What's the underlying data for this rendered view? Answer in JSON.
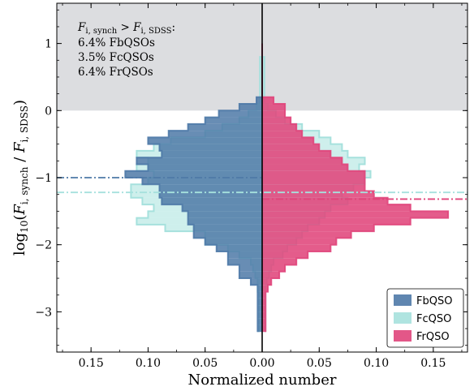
{
  "colors": {
    "FbQSO": "#4e79a7",
    "FcQSO": "#a6e1dd",
    "FrQSO": "#e0457b",
    "shade": "#dcdde0"
  },
  "chart_data": {
    "type": "bar",
    "orientation": "horizontal-mirrored",
    "xlabel": "Normalized number",
    "ylabel_parts": {
      "prefix": "log",
      "base": "10",
      "open": "(",
      "num": "F",
      "num_sub": "i, synch",
      "slash": " / ",
      "den": "F",
      "den_sub": "i, SDSS",
      "close": ")"
    },
    "xlim": [
      -0.18,
      0.18
    ],
    "ylim": [
      -3.6,
      1.6
    ],
    "x_ticks": [
      -0.15,
      -0.1,
      -0.05,
      0.0,
      0.05,
      0.1,
      0.15
    ],
    "x_tick_labels": [
      "0.15",
      "0.10",
      "0.05",
      "0.00",
      "0.05",
      "0.10",
      "0.15"
    ],
    "y_ticks": [
      1,
      0,
      -1,
      -2,
      -3
    ],
    "y_tick_labels": [
      "1",
      "0",
      "−1",
      "−2",
      "−3"
    ],
    "shaded_region": {
      "y_from": 0,
      "y_to": 1.6
    },
    "bin_edges": [
      1.0,
      0.9,
      0.8,
      0.7,
      0.6,
      0.5,
      0.4,
      0.3,
      0.2,
      0.1,
      0.0,
      -0.1,
      -0.2,
      -0.3,
      -0.4,
      -0.5,
      -0.6,
      -0.7,
      -0.8,
      -0.9,
      -1.0,
      -1.1,
      -1.2,
      -1.3,
      -1.4,
      -1.5,
      -1.6,
      -1.7,
      -1.8,
      -1.9,
      -2.0,
      -2.1,
      -2.2,
      -2.3,
      -2.4,
      -2.5,
      -2.6,
      -2.7,
      -2.8,
      -2.9,
      -3.0,
      -3.1,
      -3.2,
      -3.3
    ],
    "series": [
      {
        "name": "FbQSO",
        "side": "left",
        "values": [
          0,
          0,
          0,
          0,
          0,
          0,
          0,
          0,
          0.005,
          0.01,
          0.01,
          0.0,
          0.0,
          0.0,
          0.0,
          0.0,
          0.0,
          0.0,
          0.0,
          0.0,
          0.0,
          0.0,
          0.0,
          0.0,
          0.0,
          0.0,
          0.0,
          0.0,
          0.0,
          0.0,
          0.0,
          0.0,
          0.0,
          0.0,
          0.0,
          0.0,
          0.0,
          0.0,
          0.004,
          0.004,
          0.004,
          0.004,
          0.004
        ],
        "values_fb": [
          0,
          0,
          0,
          0,
          0,
          0,
          0,
          0,
          0.005,
          0.02,
          0.038,
          0.05,
          0.065,
          0.082,
          0.1,
          0.09,
          0.088,
          0.11,
          0.1,
          0.12,
          0.105,
          0.09,
          0.09,
          0.088,
          0.07,
          0.065,
          0.065,
          0.06,
          0.06,
          0.05,
          0.04,
          0.03,
          0.03,
          0.02,
          0.02,
          0.01,
          0.004,
          0.004,
          0.004,
          0.004,
          0.004,
          0.004,
          0.004
        ]
      },
      {
        "name": "FcQSO",
        "side": "left",
        "values": [
          0,
          0,
          0.002,
          0.002,
          0.002,
          0.002,
          0.002,
          0.002,
          0.002,
          0.005,
          0.012,
          0.02,
          0.035,
          0.05,
          0.08,
          0.095,
          0.11,
          0.1,
          0.11,
          0.095,
          0.1,
          0.115,
          0.115,
          0.105,
          0.095,
          0.1,
          0.11,
          0.085,
          0.05,
          0.05,
          0.03,
          0.02,
          0.01,
          0.008,
          0.006,
          0.004,
          0.004,
          0.003,
          0.003,
          0.003,
          0.003,
          0.003,
          0.003
        ]
      },
      {
        "name": "FrQSO",
        "side": "right",
        "values": [
          0,
          0,
          0,
          0,
          0,
          0,
          0,
          0,
          0.01,
          0.02,
          0.02,
          0.025,
          0.03,
          0.035,
          0.045,
          0.05,
          0.06,
          0.07,
          0.075,
          0.09,
          0.09,
          0.09,
          0.098,
          0.11,
          0.13,
          0.163,
          0.13,
          0.098,
          0.078,
          0.065,
          0.06,
          0.04,
          0.03,
          0.02,
          0.015,
          0.008,
          0.005,
          0.003,
          0.003,
          0.003,
          0.003,
          0.003,
          0.003
        ]
      },
      {
        "name": "FcQSO",
        "side": "right",
        "values": [
          0,
          0,
          0.002,
          0.002,
          0.002,
          0.002,
          0.002,
          0.002,
          0.002,
          0.005,
          0.012,
          0.02,
          0.035,
          0.05,
          0.06,
          0.07,
          0.075,
          0.09,
          0.085,
          0.095,
          0.09,
          0.08,
          0.07,
          0.075,
          0.06,
          0.055,
          0.05,
          0.04,
          0.035,
          0.03,
          0.022,
          0.018,
          0.01,
          0.008,
          0.006,
          0.004,
          0.003,
          0.003,
          0.003,
          0.003,
          0.003,
          0.003,
          0.003
        ]
      }
    ],
    "median_lines": [
      {
        "name": "FbQSO",
        "y": -1.0,
        "side": "left"
      },
      {
        "name": "FcQSO",
        "y": -1.22,
        "side": "both"
      },
      {
        "name": "FrQSO",
        "y": -1.32,
        "side": "right"
      }
    ],
    "annotation": {
      "line1_num": "F",
      "line1_num_sub": "i, synch",
      "line1_gt": " > ",
      "line1_den": "F",
      "line1_den_sub": "i, SDSS",
      "line1_colon": ":",
      "line2": "6.4% FbQSOs",
      "line3": "3.5% FcQSOs",
      "line4": "6.4% FrQSOs"
    },
    "legend": {
      "position": "bottom-right",
      "entries": [
        "FbQSO",
        "FcQSO",
        "FrQSO"
      ]
    }
  }
}
